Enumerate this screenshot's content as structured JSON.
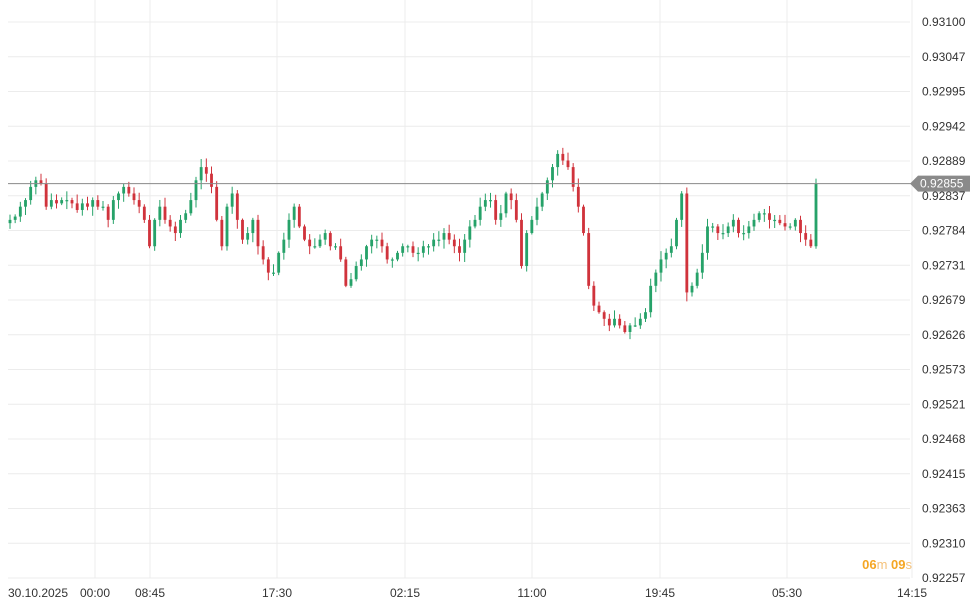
{
  "chart_data": {
    "type": "candlestick",
    "y_ticks": [
      "0.93100",
      "0.93047",
      "0.92995",
      "0.92942",
      "0.92889",
      "0.92837",
      "0.92784",
      "0.92731",
      "0.92679",
      "0.92626",
      "0.92573",
      "0.92521",
      "0.92468",
      "0.92415",
      "0.92363",
      "0.92310",
      "0.92257"
    ],
    "ylim": [
      0.92257,
      0.931
    ],
    "x_ticks": [
      "30.10.2025",
      "00:00",
      "08:45",
      "17:30",
      "02:15",
      "11:00",
      "19:45",
      "05:30",
      "14:15"
    ],
    "current_price": "0.92855",
    "current_price_value": 0.92855,
    "countdown": {
      "minutes": "06",
      "minutes_unit": "m",
      "seconds": "09",
      "seconds_unit": "s"
    },
    "colors": {
      "up": "#26a269",
      "down": "#d0333c",
      "price_line": "#8a8a8a",
      "price_label_bg": "#8a8a8a",
      "grid": "#ececec"
    },
    "candles_close": [
      0.928,
      0.92805,
      0.9282,
      0.9283,
      0.9285,
      0.9286,
      0.92855,
      0.9282,
      0.9283,
      0.92825,
      0.9283,
      0.9283,
      0.92825,
      0.92815,
      0.92825,
      0.9282,
      0.9283,
      0.9282,
      0.9282,
      0.928,
      0.9283,
      0.9284,
      0.9285,
      0.9284,
      0.9283,
      0.9282,
      0.928,
      0.9276,
      0.928,
      0.9282,
      0.928,
      0.9279,
      0.9278,
      0.928,
      0.9281,
      0.9283,
      0.9286,
      0.9288,
      0.9287,
      0.9285,
      0.928,
      0.9276,
      0.9282,
      0.9284,
      0.928,
      0.9277,
      0.9278,
      0.928,
      0.9276,
      0.9274,
      0.9272,
      0.9272,
      0.9275,
      0.9277,
      0.928,
      0.9282,
      0.9279,
      0.9277,
      0.9276,
      0.9276,
      0.9277,
      0.9278,
      0.9276,
      0.9276,
      0.9274,
      0.927,
      0.9271,
      0.9273,
      0.9274,
      0.9276,
      0.9277,
      0.9277,
      0.9276,
      0.9274,
      0.9274,
      0.9275,
      0.9276,
      0.9276,
      0.9275,
      0.9275,
      0.9276,
      0.9276,
      0.9277,
      0.9277,
      0.9278,
      0.9277,
      0.9276,
      0.9275,
      0.9277,
      0.9279,
      0.928,
      0.9282,
      0.9283,
      0.9283,
      0.928,
      0.9281,
      0.9284,
      0.9283,
      0.928,
      0.9273,
      0.9278,
      0.928,
      0.9282,
      0.9284,
      0.9286,
      0.9288,
      0.929,
      0.9289,
      0.9288,
      0.9285,
      0.9282,
      0.9278,
      0.927,
      0.9267,
      0.9266,
      0.9265,
      0.9264,
      0.9265,
      0.9264,
      0.9263,
      0.9264,
      0.9264,
      0.9265,
      0.9266,
      0.927,
      0.9272,
      0.9274,
      0.9275,
      0.9276,
      0.928,
      0.9284,
      0.9269,
      0.927,
      0.9272,
      0.9275,
      0.9279,
      0.9279,
      0.9278,
      0.9278,
      0.9279,
      0.928,
      0.9278,
      0.9278,
      0.9279,
      0.928,
      0.9281,
      0.9281,
      0.928,
      0.928,
      0.92795,
      0.9279,
      0.9279,
      0.928,
      0.9278,
      0.9277,
      0.9276,
      0.92855
    ]
  }
}
